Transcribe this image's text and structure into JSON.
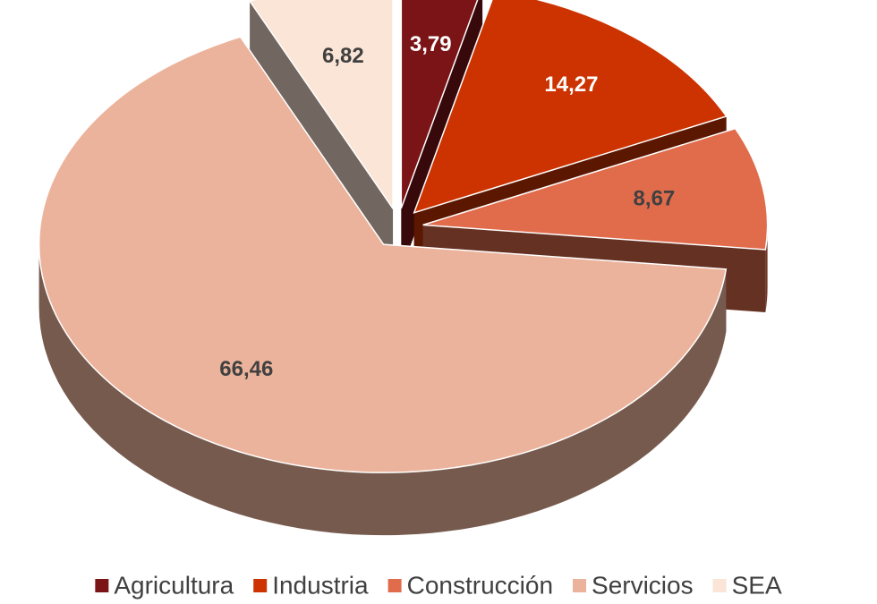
{
  "chart_data": {
    "type": "pie",
    "categories": [
      "Agricultura",
      "Industria",
      "Construcción",
      "Servicios",
      "SEA"
    ],
    "values": [
      3.79,
      14.27,
      8.67,
      66.46,
      6.82
    ],
    "value_labels": [
      "3,79",
      "14,27",
      "8,67",
      "66,46",
      "6,82"
    ],
    "colors": [
      "#7b1416",
      "#cc3300",
      "#e06c4c",
      "#ecb39c",
      "#fbe5d6"
    ],
    "legend": "bottom"
  }
}
